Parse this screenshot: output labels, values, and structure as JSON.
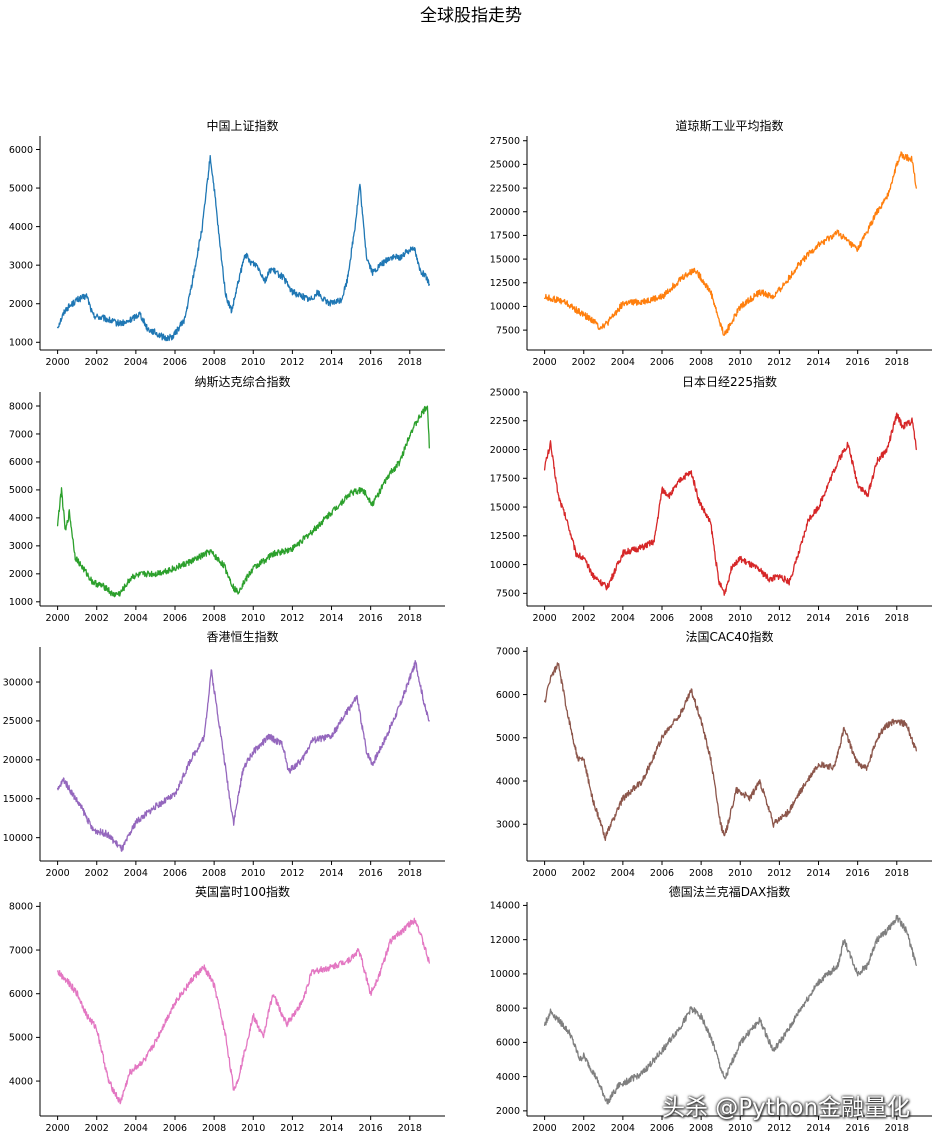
{
  "figure": {
    "suptitle": "全球股指走势",
    "watermark": "头杀 @Python金融量化"
  },
  "chart_data": [
    {
      "type": "line",
      "title": "中国上证指数",
      "color": "#1f77b4",
      "xlim": [
        1999.1,
        2019.8
      ],
      "ylim": [
        800,
        6350
      ],
      "xticks": [
        2000,
        2002,
        2004,
        2006,
        2008,
        2010,
        2012,
        2014,
        2016,
        2018
      ],
      "yticks": [
        1000,
        2000,
        3000,
        4000,
        5000,
        6000
      ],
      "x": [
        2000.0,
        2000.4,
        2001.0,
        2001.5,
        2001.8,
        2002.5,
        2003.0,
        2003.5,
        2004.2,
        2004.6,
        2005.0,
        2005.5,
        2005.9,
        2006.5,
        2006.9,
        2007.4,
        2007.8,
        2008.0,
        2008.3,
        2008.6,
        2008.9,
        2009.3,
        2009.6,
        2009.8,
        2010.2,
        2010.6,
        2010.9,
        2011.5,
        2012.0,
        2012.5,
        2012.9,
        2013.3,
        2013.6,
        2014.0,
        2014.5,
        2014.8,
        2015.2,
        2015.45,
        2015.6,
        2015.8,
        2016.1,
        2016.5,
        2017.0,
        2017.5,
        2018.0,
        2018.2,
        2018.5,
        2018.8,
        2019.0
      ],
      "y": [
        1400,
        1850,
        2100,
        2200,
        1700,
        1600,
        1500,
        1500,
        1750,
        1350,
        1250,
        1100,
        1150,
        1600,
        2600,
        4000,
        5800,
        5000,
        3500,
        2200,
        1800,
        2700,
        3300,
        3100,
        3000,
        2600,
        2900,
        2700,
        2300,
        2200,
        2100,
        2300,
        2100,
        2000,
        2100,
        2600,
        4000,
        5100,
        4200,
        3200,
        2800,
        3000,
        3200,
        3200,
        3400,
        3500,
        2900,
        2700,
        2500
      ]
    },
    {
      "type": "line",
      "title": "道琼斯工业平均指数",
      "color": "#ff7f0e",
      "xlim": [
        1999.1,
        2019.8
      ],
      "ylim": [
        5400,
        28000
      ],
      "xticks": [
        2000,
        2002,
        2004,
        2006,
        2008,
        2010,
        2012,
        2014,
        2016,
        2018
      ],
      "yticks": [
        7500,
        10000,
        12500,
        15000,
        17500,
        20000,
        22500,
        25000,
        27500
      ],
      "x": [
        2000.0,
        2001.0,
        2001.7,
        2002.5,
        2002.8,
        2003.2,
        2004.0,
        2005.0,
        2006.0,
        2007.0,
        2007.7,
        2008.5,
        2009.0,
        2009.2,
        2010.0,
        2011.0,
        2011.7,
        2012.5,
        2013.0,
        2014.0,
        2015.0,
        2015.7,
        2016.0,
        2016.5,
        2017.0,
        2017.5,
        2018.0,
        2018.2,
        2018.8,
        2019.0
      ],
      "y": [
        11000,
        10500,
        9500,
        8500,
        7800,
        8200,
        10300,
        10500,
        11000,
        13000,
        13900,
        11500,
        8000,
        7000,
        10000,
        11500,
        11000,
        13000,
        14500,
        16500,
        17800,
        16500,
        16000,
        18000,
        20000,
        21500,
        25000,
        26000,
        25500,
        22500
      ]
    },
    {
      "type": "line",
      "title": "纳斯达克综合指数",
      "color": "#2ca02c",
      "xlim": [
        1999.1,
        2019.8
      ],
      "ylim": [
        850,
        8500
      ],
      "xticks": [
        2000,
        2002,
        2004,
        2006,
        2008,
        2010,
        2012,
        2014,
        2016,
        2018
      ],
      "yticks": [
        1000,
        2000,
        3000,
        4000,
        5000,
        6000,
        7000,
        8000
      ],
      "x": [
        2000.0,
        2000.2,
        2000.4,
        2000.6,
        2000.9,
        2001.2,
        2001.5,
        2001.8,
        2002.5,
        2002.8,
        2003.2,
        2003.8,
        2004.5,
        2005.0,
        2006.0,
        2007.0,
        2007.8,
        2008.5,
        2009.0,
        2009.2,
        2010.0,
        2011.0,
        2012.0,
        2013.0,
        2014.0,
        2015.0,
        2015.6,
        2016.1,
        2017.0,
        2017.5,
        2018.0,
        2018.5,
        2018.9,
        2019.0
      ],
      "y": [
        3800,
        5000,
        3500,
        4200,
        2600,
        2300,
        2000,
        1700,
        1500,
        1250,
        1300,
        1900,
        2000,
        2000,
        2200,
        2500,
        2800,
        2300,
        1500,
        1350,
        2200,
        2700,
        2900,
        3500,
        4200,
        4900,
        5000,
        4500,
        5600,
        6000,
        7000,
        7600,
        8000,
        6500
      ]
    },
    {
      "type": "line",
      "title": "日本日经225指数",
      "color": "#d62728",
      "xlim": [
        1999.1,
        2019.8
      ],
      "ylim": [
        6400,
        25000
      ],
      "xticks": [
        2000,
        2002,
        2004,
        2006,
        2008,
        2010,
        2012,
        2014,
        2016,
        2018
      ],
      "yticks": [
        7500,
        10000,
        12500,
        15000,
        17500,
        20000,
        22500,
        25000
      ],
      "x": [
        2000.0,
        2000.3,
        2000.7,
        2001.2,
        2001.6,
        2002.0,
        2002.5,
        2003.2,
        2004.0,
        2005.0,
        2005.6,
        2006.0,
        2006.4,
        2007.0,
        2007.5,
        2007.9,
        2008.5,
        2008.9,
        2009.2,
        2009.6,
        2010.0,
        2011.0,
        2011.5,
        2012.0,
        2012.5,
        2013.0,
        2013.5,
        2014.0,
        2015.0,
        2015.5,
        2016.0,
        2016.5,
        2017.0,
        2017.5,
        2018.0,
        2018.3,
        2018.8,
        2019.0
      ],
      "y": [
        18500,
        20500,
        16000,
        13500,
        11000,
        10500,
        9000,
        8000,
        11000,
        11500,
        12000,
        16500,
        16000,
        17500,
        18000,
        15500,
        13500,
        8500,
        7500,
        10000,
        10500,
        9500,
        8700,
        9000,
        8500,
        11000,
        14000,
        15000,
        19000,
        20500,
        17000,
        16000,
        19000,
        20000,
        23000,
        22000,
        22500,
        20000
      ]
    },
    {
      "type": "line",
      "title": "香港恒生指数",
      "color": "#9467bd",
      "xlim": [
        1999.1,
        2019.8
      ],
      "ylim": [
        7000,
        34500
      ],
      "xticks": [
        2000,
        2002,
        2004,
        2006,
        2008,
        2010,
        2012,
        2014,
        2016,
        2018
      ],
      "yticks": [
        10000,
        15000,
        20000,
        25000,
        30000
      ],
      "x": [
        2000.0,
        2000.3,
        2000.8,
        2001.3,
        2001.8,
        2002.5,
        2003.3,
        2004.0,
        2005.0,
        2006.0,
        2006.8,
        2007.5,
        2007.85,
        2008.3,
        2008.8,
        2009.0,
        2009.5,
        2010.0,
        2010.8,
        2011.5,
        2011.8,
        2012.5,
        2013.0,
        2014.0,
        2015.0,
        2015.3,
        2015.8,
        2016.1,
        2016.8,
        2017.5,
        2018.0,
        2018.3,
        2018.8,
        2019.0
      ],
      "y": [
        16000,
        17500,
        15500,
        13500,
        11000,
        10500,
        8500,
        12000,
        14000,
        15500,
        20000,
        23000,
        31500,
        24000,
        15000,
        12000,
        19000,
        21000,
        23000,
        22000,
        18500,
        20000,
        22500,
        23000,
        27000,
        28000,
        21000,
        19500,
        23000,
        27000,
        30500,
        32500,
        26500,
        25000
      ]
    },
    {
      "type": "line",
      "title": "法国CAC40指数",
      "color": "#8c564b",
      "xlim": [
        1999.1,
        2019.8
      ],
      "ylim": [
        2150,
        7100
      ],
      "xticks": [
        2000,
        2002,
        2004,
        2006,
        2008,
        2010,
        2012,
        2014,
        2016,
        2018
      ],
      "yticks": [
        3000,
        4000,
        5000,
        6000,
        7000
      ],
      "x": [
        2000.0,
        2000.3,
        2000.7,
        2001.2,
        2001.7,
        2002.0,
        2002.5,
        2003.1,
        2003.6,
        2004.0,
        2005.0,
        2006.0,
        2007.0,
        2007.5,
        2008.0,
        2008.5,
        2009.0,
        2009.2,
        2009.8,
        2010.5,
        2011.0,
        2011.7,
        2012.5,
        2013.0,
        2014.0,
        2014.8,
        2015.3,
        2016.0,
        2016.5,
        2017.0,
        2017.5,
        2018.0,
        2018.5,
        2019.0
      ],
      "y": [
        5800,
        6400,
        6700,
        5500,
        4500,
        4500,
        3500,
        2700,
        3200,
        3600,
        4000,
        5000,
        5600,
        6100,
        5400,
        4500,
        3000,
        2700,
        3800,
        3600,
        4000,
        3000,
        3300,
        3700,
        4400,
        4300,
        5200,
        4400,
        4300,
        5000,
        5300,
        5400,
        5300,
        4700
      ]
    },
    {
      "type": "line",
      "title": "英国富时100指数",
      "color": "#e377c2",
      "xlim": [
        1999.1,
        2019.8
      ],
      "ylim": [
        3200,
        8100
      ],
      "xticks": [
        2000,
        2002,
        2004,
        2006,
        2008,
        2010,
        2012,
        2014,
        2016,
        2018
      ],
      "yticks": [
        4000,
        5000,
        6000,
        7000,
        8000
      ],
      "x": [
        2000.0,
        2000.5,
        2001.0,
        2001.5,
        2002.0,
        2002.6,
        2003.2,
        2003.7,
        2004.5,
        2005.0,
        2006.0,
        2007.0,
        2007.5,
        2008.0,
        2008.6,
        2009.0,
        2009.2,
        2010.0,
        2010.5,
        2011.0,
        2011.7,
        2012.5,
        2013.0,
        2014.0,
        2015.0,
        2015.4,
        2016.0,
        2016.5,
        2017.0,
        2017.5,
        2018.0,
        2018.3,
        2018.8,
        2019.0
      ],
      "y": [
        6500,
        6300,
        6000,
        5500,
        5200,
        4000,
        3500,
        4200,
        4500,
        4900,
        5800,
        6400,
        6600,
        6200,
        5000,
        3800,
        4000,
        5500,
        5000,
        6000,
        5300,
        5800,
        6500,
        6600,
        6800,
        7000,
        6000,
        6500,
        7200,
        7400,
        7600,
        7700,
        7000,
        6700
      ]
    },
    {
      "type": "line",
      "title": "德国法兰克福DAX指数",
      "color": "#7f7f7f",
      "xlim": [
        1999.1,
        2019.8
      ],
      "ylim": [
        1700,
        14200
      ],
      "xticks": [
        2000,
        2002,
        2004,
        2006,
        2008,
        2010,
        2012,
        2014,
        2016,
        2018
      ],
      "yticks": [
        2000,
        4000,
        6000,
        8000,
        10000,
        12000,
        14000
      ],
      "x": [
        2000.0,
        2000.3,
        2000.8,
        2001.3,
        2001.8,
        2002.0,
        2002.6,
        2003.2,
        2003.8,
        2004.5,
        2005.0,
        2006.0,
        2007.0,
        2007.5,
        2008.0,
        2008.6,
        2009.0,
        2009.2,
        2010.0,
        2011.0,
        2011.7,
        2012.5,
        2013.0,
        2014.0,
        2015.0,
        2015.3,
        2016.0,
        2016.5,
        2017.0,
        2017.5,
        2018.0,
        2018.5,
        2019.0
      ],
      "y": [
        7000,
        7800,
        7200,
        6500,
        5000,
        5200,
        4000,
        2500,
        3500,
        3900,
        4200,
        5500,
        7000,
        8000,
        7500,
        6000,
        4500,
        3800,
        6000,
        7300,
        5500,
        6800,
        7800,
        9500,
        10500,
        12000,
        10000,
        10500,
        12000,
        12500,
        13300,
        12500,
        10500
      ]
    }
  ]
}
